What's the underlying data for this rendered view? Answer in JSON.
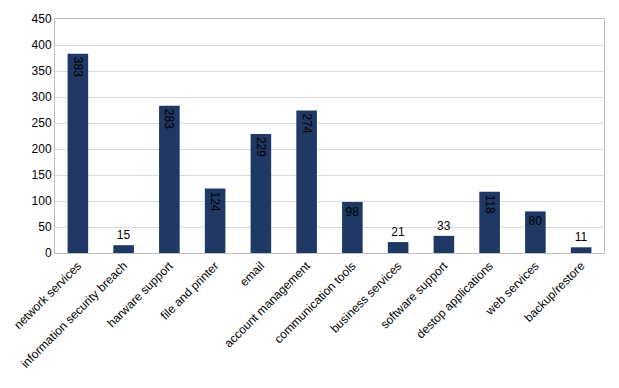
{
  "chart_data": {
    "type": "bar",
    "categories": [
      "network services",
      "information security breach",
      "harware support",
      "file and printer",
      "email",
      "account management",
      "communication tools",
      "business services",
      "software support",
      "destop applications",
      "web services",
      "backup/restore"
    ],
    "values": [
      383,
      15,
      283,
      124,
      229,
      274,
      98,
      21,
      33,
      118,
      80,
      11
    ],
    "color": "#1f3864",
    "ylim": [
      0,
      450
    ],
    "yticks": [
      0,
      50,
      100,
      150,
      200,
      250,
      300,
      350,
      400,
      450
    ],
    "grid": true,
    "data_labels": true
  }
}
